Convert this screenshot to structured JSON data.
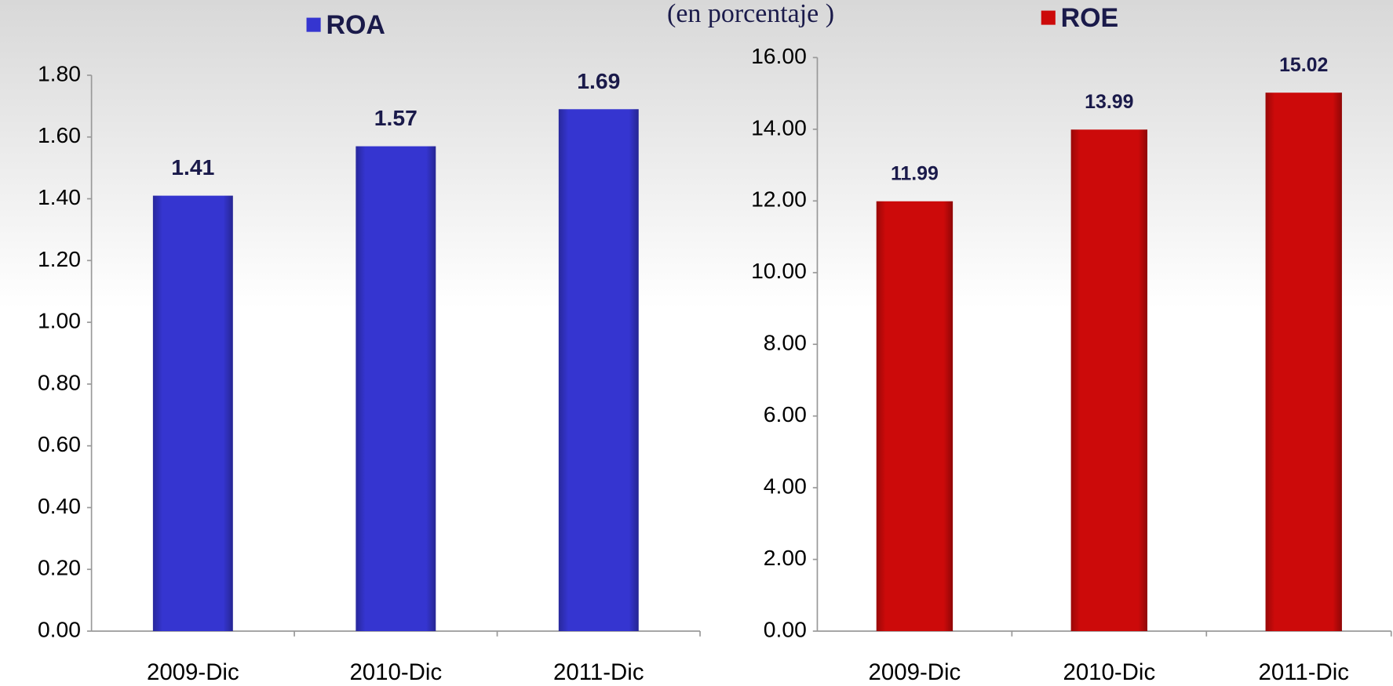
{
  "chart_data": [
    {
      "type": "bar",
      "subtitle": "(en porcentaje )",
      "categories": [
        "2009-Dic",
        "2010-Dic",
        "2011-Dic"
      ],
      "series": [
        {
          "name": "ROA",
          "color": "#3535d0",
          "values": [
            1.41,
            1.57,
            1.69
          ]
        }
      ],
      "ylim": [
        0,
        1.8
      ],
      "yticks": [
        {
          "value": 0,
          "label": "0.00"
        },
        {
          "value": 0.2,
          "label": "0.20"
        },
        {
          "value": 0.4,
          "label": "0.40"
        },
        {
          "value": 0.6,
          "label": "0.60"
        },
        {
          "value": 0.8,
          "label": "0.80"
        },
        {
          "value": 1,
          "label": "1.00"
        },
        {
          "value": 1.2,
          "label": "1.20"
        },
        {
          "value": 1.4,
          "label": "1.40"
        },
        {
          "value": 1.6,
          "label": "1.60"
        },
        {
          "value": 1.8,
          "label": "1.80"
        }
      ],
      "legend": "top"
    },
    {
      "type": "bar",
      "categories": [
        "2009-Dic",
        "2010-Dic",
        "2011-Dic"
      ],
      "series": [
        {
          "name": "ROE",
          "color": "#cc0a0a",
          "values": [
            11.99,
            13.99,
            15.02
          ]
        }
      ],
      "ylim": [
        0,
        16
      ],
      "yticks": [
        {
          "value": 0,
          "label": "0.00"
        },
        {
          "value": 2,
          "label": "2.00"
        },
        {
          "value": 4,
          "label": "4.00"
        },
        {
          "value": 6,
          "label": "6.00"
        },
        {
          "value": 8,
          "label": "8.00"
        },
        {
          "value": 10,
          "label": "10.00"
        },
        {
          "value": 12,
          "label": "12.00"
        },
        {
          "value": 14,
          "label": "14.00"
        },
        {
          "value": 16,
          "label": "16.00"
        }
      ],
      "legend": "top"
    }
  ]
}
